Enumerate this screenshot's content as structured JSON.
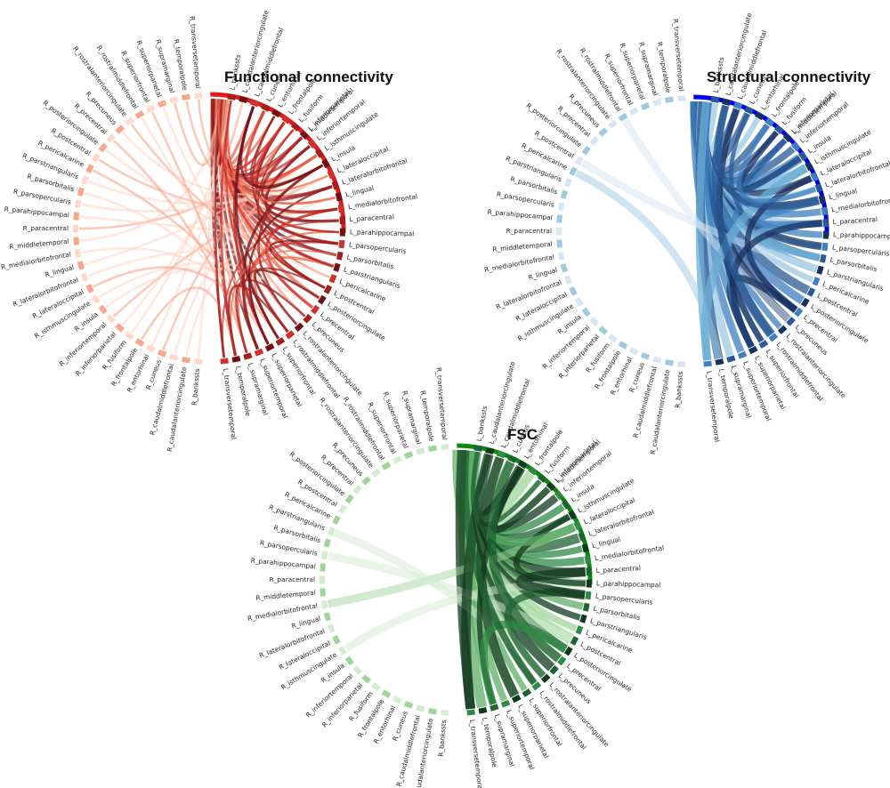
{
  "charts": [
    {
      "title": "Functional connectivity",
      "color": "#e31a1c",
      "palette": [
        "#fdd9c9",
        "#f9a58a",
        "#ee6a4f",
        "#d0312d",
        "#a3201f",
        "#6e1218"
      ],
      "left_labels": [
        "L_middletemporal",
        "L_bankssts",
        "L_caudalanteriorcingulate",
        "L_caudalmiddlefrontal",
        "L_cuneus",
        "L_entorhinal",
        "L_frontalpole",
        "L_fusiform",
        "L_inferiorparietal",
        "L_inferiortemporal",
        "L_isthmuscingulate",
        "L_insula",
        "L_lateraloccipital",
        "L_lateralorbitofrontal",
        "L_lingual",
        "L_medialorbitofrontal",
        "L_paracentral",
        "L_parahippocampal",
        "L_parsopercularis",
        "L_parsorbitalis",
        "L_parstriangularis",
        "L_pericalcarine",
        "L_postcentral",
        "L_posteriorcingulate",
        "L_precentral",
        "L_precuneus",
        "L_rostralanteriorcingulate",
        "L_rostralmiddlefrontal",
        "L_superiorfrontal",
        "L_superiorparietal",
        "L_superiortemporal",
        "L_supramarginal",
        "L_temporalpole",
        "L_transversetemporal"
      ],
      "right_labels": [
        "R_bankssts",
        "R_caudalanteriorcingulate",
        "R_caudalmiddlefrontal",
        "R_cuneus",
        "R_entorhinal",
        "R_frontalpole",
        "R_fusiform",
        "R_inferiorparietal",
        "R_inferiortemporal",
        "R_insula",
        "R_isthmuscingulate",
        "R_lateraloccipital",
        "R_lateralorbitofrontal",
        "R_lingual",
        "R_medialorbitofrontal",
        "R_middletemporal",
        "R_paracentral",
        "R_parahippocampal",
        "R_parsopercularis",
        "R_parsorbitalis",
        "R_parstriangularis",
        "R_pericalcarine",
        "R_postcentral",
        "R_posteriorcingulate",
        "R_precentral",
        "R_precuneus",
        "R_rostralanteriorcingulate",
        "R_rostralmiddlefrontal",
        "R_superiorfrontal",
        "R_superiorparietal",
        "R_supramarginal",
        "R_temporalpole",
        "R_transversetemporal"
      ]
    },
    {
      "title": "Structural connectivity",
      "color": "#0000ee",
      "palette": [
        "#d6e6f4",
        "#9ecae1",
        "#6baed6",
        "#3f7fbf",
        "#2a5a94",
        "#18305f"
      ],
      "left_labels": [
        "L_middletemporal",
        "L_bankssts",
        "L_caudalanteriorcingulate",
        "L_caudalmiddlefrontal",
        "L_cuneus",
        "L_entorhinal",
        "L_frontalpole",
        "L_fusiform",
        "L_inferiorparietal",
        "L_inferiortemporal",
        "L_insula",
        "L_isthmuscingulate",
        "L_lateraloccipital",
        "L_lateralorbitofrontal",
        "L_lingual",
        "L_medialorbitofrontal",
        "L_paracentral",
        "L_parahippocampal",
        "L_parsopercularis",
        "L_parsorbitalis",
        "L_parstriangularis",
        "L_pericalcarine",
        "L_postcentral",
        "L_posteriorcingulate",
        "L_precentral",
        "L_precuneus",
        "L_rostralanteriorcingulate",
        "L_rostralmiddlefrontal",
        "L_superiorfrontal",
        "L_superiorparietal",
        "L_superiortemporal",
        "L_supramarginal",
        "L_temporalpole",
        "L_transversetemporal"
      ],
      "right_labels": [
        "R_bankssts",
        "R_caudalanteriorcingulate",
        "R_caudalmiddlefrontal",
        "R_cuneus",
        "R_entorhinal",
        "R_frontalpole",
        "R_fusiform",
        "R_inferiorparietal",
        "R_inferiortemporal",
        "R_insula",
        "R_isthmuscingulate",
        "R_lateraloccipital",
        "R_lateralorbitofrontal",
        "R_lingual",
        "R_medialorbitofrontal",
        "R_middletemporal",
        "R_paracentral",
        "R_parahippocampal",
        "R_parsopercularis",
        "R_parsorbitalis",
        "R_parstriangularis",
        "R_pericalcarine",
        "R_postcentral",
        "R_posteriorcingulate",
        "R_precentral",
        "R_precuneus",
        "R_rostralanteriorcingulate",
        "R_rostralmiddlefrontal",
        "R_superiorfrontal",
        "R_superiorparietal",
        "R_supramarginal",
        "R_temporalpole",
        "R_transversetemporal"
      ]
    },
    {
      "title": "FSC",
      "color": "#0a8a0a",
      "palette": [
        "#d4edd0",
        "#9fd59a",
        "#5fae67",
        "#2f8a45",
        "#1f6233",
        "#103a1d"
      ],
      "left_labels": [
        "L_middletemporal",
        "L_bankssts",
        "L_caudalanteriorcingulate",
        "L_caudalmiddlefrontal",
        "L_cuneus",
        "L_entorhinal",
        "L_frontalpole",
        "L_fusiform",
        "L_inferiorparietal",
        "L_inferiortemporal",
        "L_insula",
        "L_isthmuscingulate",
        "L_lateraloccipital",
        "L_lateralorbitofrontal",
        "L_lingual",
        "L_medialorbitofrontal",
        "L_paracentral",
        "L_parahippocampal",
        "L_parsopercularis",
        "L_parsorbitalis",
        "L_parstriangularis",
        "L_pericalcarine",
        "L_postcentral",
        "L_posteriorcingulate",
        "L_precentral",
        "L_precuneus",
        "L_rostralanteriorcingulate",
        "L_rostralmiddlefrontal",
        "L_superiorfrontal",
        "L_superiorparietal",
        "L_superiortemporal",
        "L_supramarginal",
        "L_temporalpole",
        "L_transversetemporal"
      ],
      "right_labels": [
        "R_bankssts",
        "R_caudalanteriorcingulate",
        "R_caudalmiddlefrontal",
        "R_cuneus",
        "R_entorhinal",
        "R_frontalpole",
        "R_fusiform",
        "R_inferiorparietal",
        "R_inferiortemporal",
        "R_insula",
        "R_isthmuscingulate",
        "R_lateraloccipital",
        "R_lateralorbitofrontal",
        "R_lingual",
        "R_medialorbitofrontal",
        "R_middletemporal",
        "R_paracentral",
        "R_parahippocampal",
        "R_parsopercularis",
        "R_parsorbitalis",
        "R_parstriangularis",
        "R_pericalcarine",
        "R_postcentral",
        "R_posteriorcingulate",
        "R_precentral",
        "R_precuneus",
        "R_rostralanteriorcingulate",
        "R_rostralmiddlefrontal",
        "R_superiorfrontal",
        "R_superiorparietal",
        "R_supramarginal",
        "R_temporalpole",
        "R_transversetemporal"
      ]
    }
  ]
}
